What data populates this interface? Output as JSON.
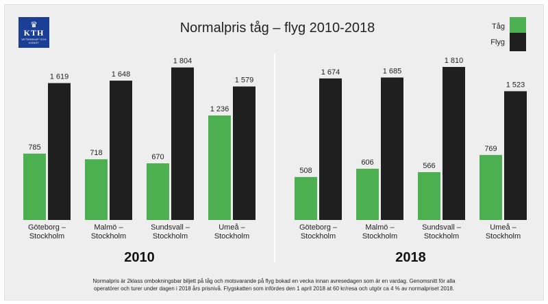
{
  "logo": {
    "mark": "♛",
    "name": "KTH",
    "subline": "VETENSKAP OCH KONST"
  },
  "title": "Normalpris tåg – flyg 2010-2018",
  "legend": [
    {
      "label": "Tåg",
      "color": "#4caf50"
    },
    {
      "label": "Flyg",
      "color": "#1f1f1f"
    }
  ],
  "chart_data": [
    {
      "type": "bar",
      "title": "2010",
      "categories": [
        [
          "Göteborg –",
          "Stockholm"
        ],
        [
          "Malmö –",
          "Stockholm"
        ],
        [
          "Sundsvall –",
          "Stockholm"
        ],
        [
          "Umeå –",
          "Stockholm"
        ]
      ],
      "series": [
        {
          "name": "Tåg",
          "values": [
            785,
            718,
            670,
            1236
          ],
          "labels": [
            "785",
            "718",
            "670",
            "1 236"
          ]
        },
        {
          "name": "Flyg",
          "values": [
            1619,
            1648,
            1804,
            1579
          ],
          "labels": [
            "1 619",
            "1 648",
            "1 804",
            "1 579"
          ]
        }
      ],
      "ylim": [
        0,
        1810
      ],
      "legend_position": "top-right",
      "grid": false
    },
    {
      "type": "bar",
      "title": "2018",
      "categories": [
        [
          "Göteborg –",
          "Stockholm"
        ],
        [
          "Malmö –",
          "Stockholm"
        ],
        [
          "Sundsvall –",
          "Stockholm"
        ],
        [
          "Umeå –",
          "Stockholm"
        ]
      ],
      "series": [
        {
          "name": "Tåg",
          "values": [
            508,
            606,
            566,
            769
          ],
          "labels": [
            "508",
            "606",
            "566",
            "769"
          ]
        },
        {
          "name": "Flyg",
          "values": [
            1674,
            1685,
            1810,
            1523
          ],
          "labels": [
            "1 674",
            "1 685",
            "1 810",
            "1 523"
          ]
        }
      ],
      "ylim": [
        0,
        1810
      ],
      "legend_position": "top-right",
      "grid": false
    }
  ],
  "footnote": [
    "Normalpris är 2klass ombokningsbar biljett på tåg och motsvarande på flyg bokad en vecka innan avresedagen som är en vardag. Genomsnitt för alla",
    "operatörer och turer under dagen i 2018 års prisnivå. Flygskatten som infördes den 1 april 2018 at 60 kr/resa och utgör ca 4 % av normalpriset 2018."
  ]
}
